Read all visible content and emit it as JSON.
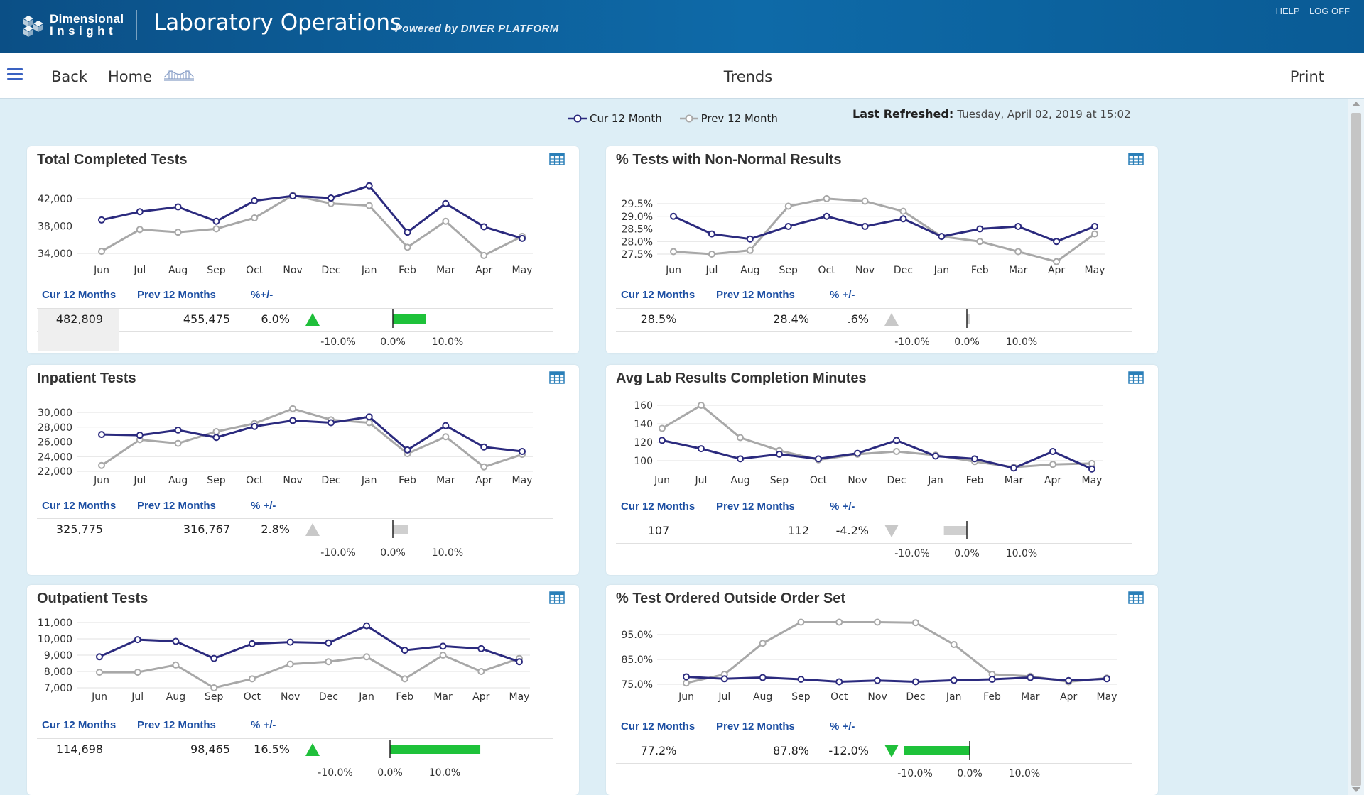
{
  "header": {
    "logo_line1": "Dimensional",
    "logo_line2": "Insight",
    "app_title": "Laboratory Operations",
    "powered_by": "Powered by DIVER PLATFORM",
    "help_label": "HELP",
    "logoff_label": "LOG OFF"
  },
  "nav": {
    "back_label": "Back",
    "home_label": "Home",
    "page_title": "Trends",
    "print_label": "Print"
  },
  "legend": {
    "cur_label": "Cur 12 Month",
    "prev_label": "Prev 12 Month",
    "cur_color": "#2b2a7e",
    "prev_color": "#a8a8a8"
  },
  "refreshed": {
    "label": "Last Refreshed:",
    "value": "Tuesday, April 02, 2019 at 15:02"
  },
  "stats_headers": {
    "cur": "Cur 12 Months",
    "prev": "Prev 12 Months",
    "pct": "% +/-",
    "pct_alt": "%+/-"
  },
  "scale_labels": [
    "-10.0%",
    "0.0%",
    "10.0%"
  ],
  "colors": {
    "green": "#1ec23a",
    "gray": "#cfcfcf",
    "up_green": "#1fbf3a",
    "tri_gray": "#c8c8c8",
    "stats_blue": "#1d4fa3"
  },
  "chart_data": [
    {
      "type": "line",
      "title": "Total Completed Tests",
      "categories": [
        "Jun",
        "Jul",
        "Aug",
        "Sep",
        "Oct",
        "Nov",
        "Dec",
        "Jan",
        "Feb",
        "Mar",
        "Apr",
        "May"
      ],
      "series": [
        {
          "name": "Cur 12 Month",
          "values": [
            38900,
            40100,
            40800,
            38700,
            41700,
            42400,
            42100,
            43900,
            37100,
            41300,
            37900,
            36200
          ]
        },
        {
          "name": "Prev 12 Month",
          "values": [
            34300,
            37500,
            37100,
            37600,
            39200,
            42500,
            41300,
            41000,
            34900,
            38700,
            33700,
            36500
          ]
        }
      ],
      "yticks": [
        "34,000",
        "38,000",
        "42,000"
      ],
      "ylim": [
        34000,
        42000
      ],
      "stats": {
        "cur": "482,809",
        "prev": "455,475",
        "pct": "6.0%",
        "pct_value": 6.0,
        "direction": "up",
        "bar_color": "green",
        "shade_cur": true,
        "pct_header": "alt"
      }
    },
    {
      "type": "line",
      "title": "% Tests with Non-Normal Results",
      "categories": [
        "Jun",
        "Jul",
        "Aug",
        "Sep",
        "Oct",
        "Nov",
        "Dec",
        "Jan",
        "Feb",
        "Mar",
        "Apr",
        "May"
      ],
      "series": [
        {
          "name": "Cur 12 Month",
          "values": [
            29.0,
            28.3,
            28.1,
            28.6,
            29.0,
            28.6,
            28.9,
            28.2,
            28.5,
            28.6,
            28.0,
            28.6
          ]
        },
        {
          "name": "Prev 12 Month",
          "values": [
            27.6,
            27.5,
            27.65,
            29.4,
            29.7,
            29.6,
            29.2,
            28.2,
            28.0,
            27.6,
            27.2,
            28.3
          ]
        }
      ],
      "yticks": [
        "27.5%",
        "28.0%",
        "28.5%",
        "29.0%",
        "29.5%"
      ],
      "ylim": [
        27.5,
        29.5
      ],
      "stats": {
        "cur": "28.5%",
        "prev": "28.4%",
        "pct": ".6%",
        "pct_value": 0.6,
        "direction": "up",
        "bar_color": "gray",
        "shade_cur": false,
        "pct_header": "main"
      }
    },
    {
      "type": "line",
      "title": "Inpatient Tests",
      "categories": [
        "Jun",
        "Jul",
        "Aug",
        "Sep",
        "Oct",
        "Nov",
        "Dec",
        "Jan",
        "Feb",
        "Mar",
        "Apr",
        "May"
      ],
      "series": [
        {
          "name": "Cur 12 Month",
          "values": [
            27000,
            26900,
            27600,
            26600,
            28100,
            28900,
            28600,
            29400,
            24900,
            28200,
            25300,
            24700
          ]
        },
        {
          "name": "Prev 12 Month",
          "values": [
            22800,
            26300,
            25800,
            27400,
            28500,
            30500,
            29000,
            28600,
            24400,
            26700,
            22600,
            24300
          ]
        }
      ],
      "yticks": [
        "22,000",
        "24,000",
        "26,000",
        "28,000",
        "30,000"
      ],
      "ylim": [
        22000,
        30000
      ],
      "stats": {
        "cur": "325,775",
        "prev": "316,767",
        "pct": "2.8%",
        "pct_value": 2.8,
        "direction": "up",
        "bar_color": "gray",
        "shade_cur": false,
        "pct_header": "main"
      }
    },
    {
      "type": "line",
      "title": "Avg Lab Results Completion Minutes",
      "categories": [
        "Jun",
        "Jul",
        "Aug",
        "Sep",
        "Oct",
        "Nov",
        "Dec",
        "Jan",
        "Feb",
        "Mar",
        "Apr",
        "May"
      ],
      "series": [
        {
          "name": "Cur 12 Month",
          "values": [
            122,
            113,
            102,
            107,
            102,
            108,
            122,
            105,
            102,
            92,
            110,
            91
          ]
        },
        {
          "name": "Prev 12 Month",
          "values": [
            135,
            160,
            125,
            111,
            101,
            107,
            110,
            106,
            99,
            93,
            96,
            97
          ]
        }
      ],
      "yticks": [
        "100",
        "120",
        "140",
        "160"
      ],
      "ylim": [
        100,
        160
      ],
      "stats": {
        "cur": "107",
        "prev": "112",
        "pct": "-4.2%",
        "pct_value": -4.2,
        "direction": "down",
        "bar_color": "gray",
        "shade_cur": false,
        "pct_header": "main"
      }
    },
    {
      "type": "line",
      "title": "Outpatient Tests",
      "categories": [
        "Jun",
        "Jul",
        "Aug",
        "Sep",
        "Oct",
        "Nov",
        "Dec",
        "Jan",
        "Feb",
        "Mar",
        "Apr",
        "May"
      ],
      "series": [
        {
          "name": "Cur 12 Month",
          "values": [
            8900,
            9950,
            9850,
            8800,
            9700,
            9800,
            9750,
            10800,
            9300,
            9550,
            9400,
            8600
          ]
        },
        {
          "name": "Prev 12 Month",
          "values": [
            7950,
            7950,
            8400,
            7000,
            7550,
            8450,
            8600,
            8900,
            7550,
            9000,
            8000,
            8800
          ]
        }
      ],
      "yticks": [
        "7,000",
        "8,000",
        "9,000",
        "10,000",
        "11,000"
      ],
      "ylim": [
        7000,
        11000
      ],
      "stats": {
        "cur": "114,698",
        "prev": "98,465",
        "pct": "16.5%",
        "pct_value": 16.5,
        "direction": "up",
        "bar_color": "green",
        "shade_cur": false,
        "pct_header": "main"
      }
    },
    {
      "type": "line",
      "title": "% Test Ordered Outside Order Set",
      "categories": [
        "Jun",
        "Jul",
        "Aug",
        "Sep",
        "Oct",
        "Nov",
        "Dec",
        "Jan",
        "Feb",
        "Mar",
        "Apr",
        "May"
      ],
      "series": [
        {
          "name": "Cur 12 Month",
          "values": [
            78.0,
            77.2,
            77.7,
            77.0,
            76.0,
            76.5,
            76.0,
            76.6,
            77.0,
            77.7,
            76.5,
            77.2
          ]
        },
        {
          "name": "Prev 12 Month",
          "values": [
            75.5,
            79.0,
            91.5,
            100.0,
            100.0,
            100.0,
            99.8,
            91.0,
            79.0,
            78.2,
            76.0,
            77.5
          ]
        }
      ],
      "yticks": [
        "75.0%",
        "85.0%",
        "95.0%"
      ],
      "ylim": [
        75,
        95
      ],
      "stats": {
        "cur": "77.2%",
        "prev": "87.8%",
        "pct": "-12.0%",
        "pct_value": -12.0,
        "direction": "down",
        "bar_color": "green",
        "shade_cur": false,
        "pct_header": "main"
      }
    }
  ]
}
